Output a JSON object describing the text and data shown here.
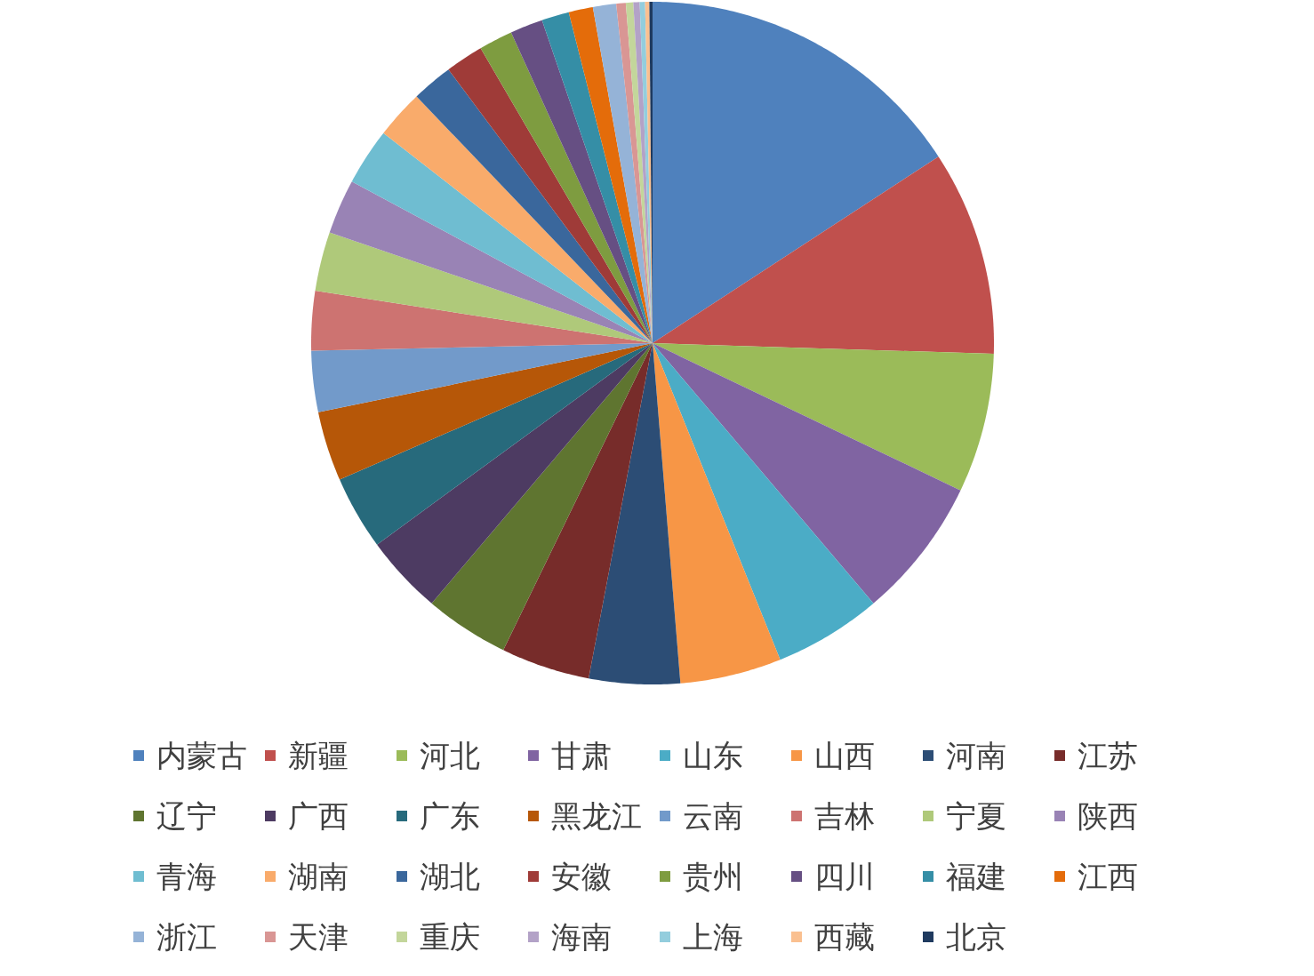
{
  "chart_data": {
    "type": "pie",
    "legend": "bottom",
    "categories": [
      "内蒙古",
      "新疆",
      "河北",
      "甘肃",
      "山东",
      "山西",
      "河南",
      "江苏",
      "辽宁",
      "广西",
      "广东",
      "黑龙江",
      "云南",
      "吉林",
      "宁夏",
      "陕西",
      "青海",
      "湖南",
      "湖北",
      "安徽",
      "贵州",
      "四川",
      "福建",
      "江西",
      "浙江",
      "天津",
      "重庆",
      "海南",
      "上海",
      "西藏",
      "北京"
    ],
    "values": [
      15.8,
      9.7,
      6.6,
      6.7,
      5.1,
      4.8,
      4.3,
      4.2,
      4.0,
      3.75,
      3.5,
      3.3,
      2.9,
      2.8,
      2.8,
      2.6,
      2.7,
      2.3,
      1.95,
      1.8,
      1.6,
      1.55,
      1.3,
      1.15,
      1.1,
      0.45,
      0.35,
      0.3,
      0.25,
      0.2,
      0.15
    ],
    "colors": [
      "#4f81bd",
      "#c0504d",
      "#9bbb59",
      "#8064a2",
      "#4bacc6",
      "#f79646",
      "#2c4d75",
      "#772c2a",
      "#5f7530",
      "#4d3b62",
      "#276a7c",
      "#b65708",
      "#729aca",
      "#cd7371",
      "#afc97a",
      "#9983b5",
      "#6fbdd1",
      "#f9ab6b",
      "#3a679c",
      "#9f3b38",
      "#7e9c40",
      "#664f83",
      "#358ea6",
      "#e46c0a",
      "#95b3d7",
      "#d99694",
      "#c3d69b",
      "#b3a2c7",
      "#93cddd",
      "#fac090",
      "#1f3a5f"
    ]
  }
}
